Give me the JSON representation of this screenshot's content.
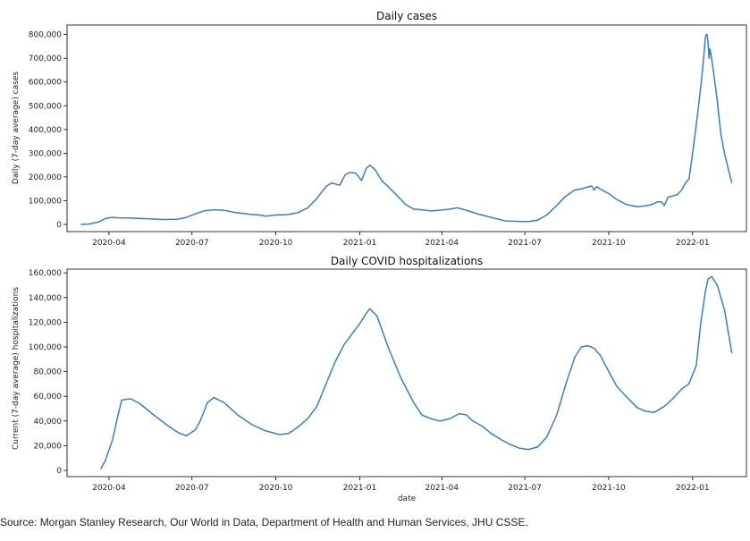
{
  "source_note": "Source: Morgan Stanley Research, Our World in Data, Department of Health and Human Services, JHU CSSE.",
  "style": {
    "line_color": "#3a7ebf",
    "axis_color": "#000000"
  },
  "x_axis": {
    "start": "2020-02-15",
    "end": "2022-03-01",
    "ticks": [
      {
        "date": "2020-04-01",
        "label": "2020-04"
      },
      {
        "date": "2020-07-01",
        "label": "2020-07"
      },
      {
        "date": "2020-10-01",
        "label": "2020-10"
      },
      {
        "date": "2021-01-01",
        "label": "2021-01"
      },
      {
        "date": "2021-04-01",
        "label": "2021-04"
      },
      {
        "date": "2021-07-01",
        "label": "2021-07"
      },
      {
        "date": "2021-10-01",
        "label": "2021-10"
      },
      {
        "date": "2022-01-01",
        "label": "2022-01"
      }
    ]
  },
  "chart_data": [
    {
      "type": "line",
      "title": "Daily cases",
      "xlabel": "",
      "ylabel": "Daily (7-day average) cases",
      "ylim": [
        -30000,
        840000
      ],
      "yticks": [
        0,
        100000,
        200000,
        300000,
        400000,
        500000,
        600000,
        700000,
        800000
      ],
      "ytick_labels": [
        "0",
        "100,000",
        "200,000",
        "300,000",
        "400,000",
        "500,000",
        "600,000",
        "700,000",
        "800,000"
      ],
      "x_tick_labels": [
        "2020-04",
        "2020-07",
        "2020-10",
        "2021-01",
        "2021-04",
        "2021-07",
        "2021-10",
        "2022-01"
      ],
      "grid": false,
      "series": [
        {
          "x": [
            "2020-03-01",
            "2020-03-10",
            "2020-03-20",
            "2020-03-28",
            "2020-04-04",
            "2020-04-12",
            "2020-04-25",
            "2020-05-15",
            "2020-06-01",
            "2020-06-15",
            "2020-06-25",
            "2020-07-05",
            "2020-07-15",
            "2020-07-25",
            "2020-08-05",
            "2020-08-15",
            "2020-08-25",
            "2020-09-05",
            "2020-09-13",
            "2020-09-20",
            "2020-10-01",
            "2020-10-15",
            "2020-10-25",
            "2020-11-05",
            "2020-11-15",
            "2020-11-25",
            "2020-12-01",
            "2020-12-10",
            "2020-12-16",
            "2020-12-22",
            "2020-12-28",
            "2021-01-03",
            "2021-01-08",
            "2021-01-12",
            "2021-01-18",
            "2021-01-25",
            "2021-02-01",
            "2021-02-10",
            "2021-02-20",
            "2021-03-01",
            "2021-03-10",
            "2021-03-20",
            "2021-03-30",
            "2021-04-10",
            "2021-04-18",
            "2021-04-28",
            "2021-05-10",
            "2021-05-25",
            "2021-06-10",
            "2021-06-25",
            "2021-07-05",
            "2021-07-15",
            "2021-07-25",
            "2021-08-05",
            "2021-08-15",
            "2021-08-25",
            "2021-09-01",
            "2021-09-08",
            "2021-09-12",
            "2021-09-15",
            "2021-09-18",
            "2021-09-22",
            "2021-10-01",
            "2021-10-10",
            "2021-10-20",
            "2021-11-01",
            "2021-11-10",
            "2021-11-18",
            "2021-11-23",
            "2021-11-28",
            "2021-12-01",
            "2021-12-05",
            "2021-12-15",
            "2021-12-20",
            "2021-12-25",
            "2021-12-28",
            "2022-01-01",
            "2022-01-05",
            "2022-01-10",
            "2022-01-13",
            "2022-01-15",
            "2022-01-16",
            "2022-01-17",
            "2022-01-18",
            "2022-01-19",
            "2022-01-20",
            "2022-01-21",
            "2022-01-24",
            "2022-01-28",
            "2022-02-01",
            "2022-02-05",
            "2022-02-10",
            "2022-02-13"
          ],
          "y": [
            0,
            2000,
            10000,
            25000,
            30000,
            28000,
            27000,
            24000,
            21000,
            22000,
            30000,
            45000,
            58000,
            62000,
            60000,
            52000,
            47000,
            42000,
            40000,
            35000,
            40000,
            42000,
            50000,
            70000,
            110000,
            160000,
            175000,
            165000,
            210000,
            220000,
            215000,
            185000,
            235000,
            250000,
            230000,
            185000,
            160000,
            125000,
            85000,
            65000,
            62000,
            57000,
            60000,
            65000,
            70000,
            60000,
            45000,
            30000,
            15000,
            13000,
            12000,
            18000,
            40000,
            80000,
            120000,
            145000,
            150000,
            158000,
            162000,
            145000,
            160000,
            148000,
            130000,
            105000,
            85000,
            75000,
            78000,
            85000,
            95000,
            95000,
            80000,
            115000,
            125000,
            145000,
            180000,
            190000,
            300000,
            420000,
            580000,
            700000,
            790000,
            800000,
            800000,
            760000,
            700000,
            740000,
            720000,
            640000,
            520000,
            380000,
            300000,
            220000,
            175000
          ]
        }
      ]
    },
    {
      "type": "line",
      "title": "Daily COVID hospitalizations",
      "xlabel": "date",
      "ylabel": "Current (7-day average) hospitalizations",
      "ylim": [
        -5000,
        163000
      ],
      "yticks": [
        0,
        20000,
        40000,
        60000,
        80000,
        100000,
        120000,
        140000,
        160000
      ],
      "ytick_labels": [
        "0",
        "20,000",
        "40,000",
        "60,000",
        "80,000",
        "100,000",
        "120,000",
        "140,000",
        "160,000"
      ],
      "x_tick_labels": [
        "2020-04",
        "2020-07",
        "2020-10",
        "2021-01",
        "2021-04",
        "2021-07",
        "2021-10",
        "2022-01"
      ],
      "grid": false,
      "series": [
        {
          "x": [
            "2020-03-23",
            "2020-03-28",
            "2020-04-05",
            "2020-04-10",
            "2020-04-15",
            "2020-04-25",
            "2020-05-05",
            "2020-05-20",
            "2020-06-05",
            "2020-06-15",
            "2020-06-25",
            "2020-07-05",
            "2020-07-10",
            "2020-07-18",
            "2020-07-25",
            "2020-08-05",
            "2020-08-20",
            "2020-09-05",
            "2020-09-20",
            "2020-10-05",
            "2020-10-15",
            "2020-10-25",
            "2020-11-05",
            "2020-11-15",
            "2020-11-25",
            "2020-12-05",
            "2020-12-15",
            "2020-12-25",
            "2021-01-02",
            "2021-01-07",
            "2021-01-12",
            "2021-01-20",
            "2021-02-01",
            "2021-02-15",
            "2021-03-01",
            "2021-03-10",
            "2021-03-20",
            "2021-03-30",
            "2021-04-10",
            "2021-04-20",
            "2021-04-28",
            "2021-05-05",
            "2021-05-15",
            "2021-05-25",
            "2021-06-05",
            "2021-06-15",
            "2021-06-25",
            "2021-07-05",
            "2021-07-15",
            "2021-07-25",
            "2021-08-05",
            "2021-08-15",
            "2021-08-25",
            "2021-09-01",
            "2021-09-08",
            "2021-09-15",
            "2021-09-22",
            "2021-10-01",
            "2021-10-10",
            "2021-10-20",
            "2021-11-01",
            "2021-11-10",
            "2021-11-20",
            "2021-12-01",
            "2021-12-10",
            "2021-12-20",
            "2021-12-28",
            "2022-01-05",
            "2022-01-10",
            "2022-01-15",
            "2022-01-18",
            "2022-01-22",
            "2022-01-28",
            "2022-02-05",
            "2022-02-13"
          ],
          "y": [
            1000,
            8000,
            25000,
            42000,
            57000,
            58000,
            54000,
            45000,
            36000,
            31000,
            28000,
            33000,
            40000,
            55000,
            59000,
            55000,
            45000,
            37000,
            32000,
            29000,
            30000,
            35000,
            42000,
            52000,
            70000,
            88000,
            102000,
            112000,
            120000,
            126000,
            131000,
            125000,
            100000,
            75000,
            55000,
            45000,
            42000,
            40000,
            42000,
            46000,
            45000,
            40000,
            36000,
            30000,
            25000,
            21000,
            18000,
            17000,
            19000,
            27000,
            45000,
            70000,
            92000,
            100000,
            101000,
            99000,
            93000,
            80000,
            68000,
            60000,
            51000,
            48000,
            47000,
            52000,
            58000,
            66000,
            70000,
            85000,
            120000,
            145000,
            155000,
            157000,
            150000,
            130000,
            95000
          ]
        }
      ]
    }
  ]
}
